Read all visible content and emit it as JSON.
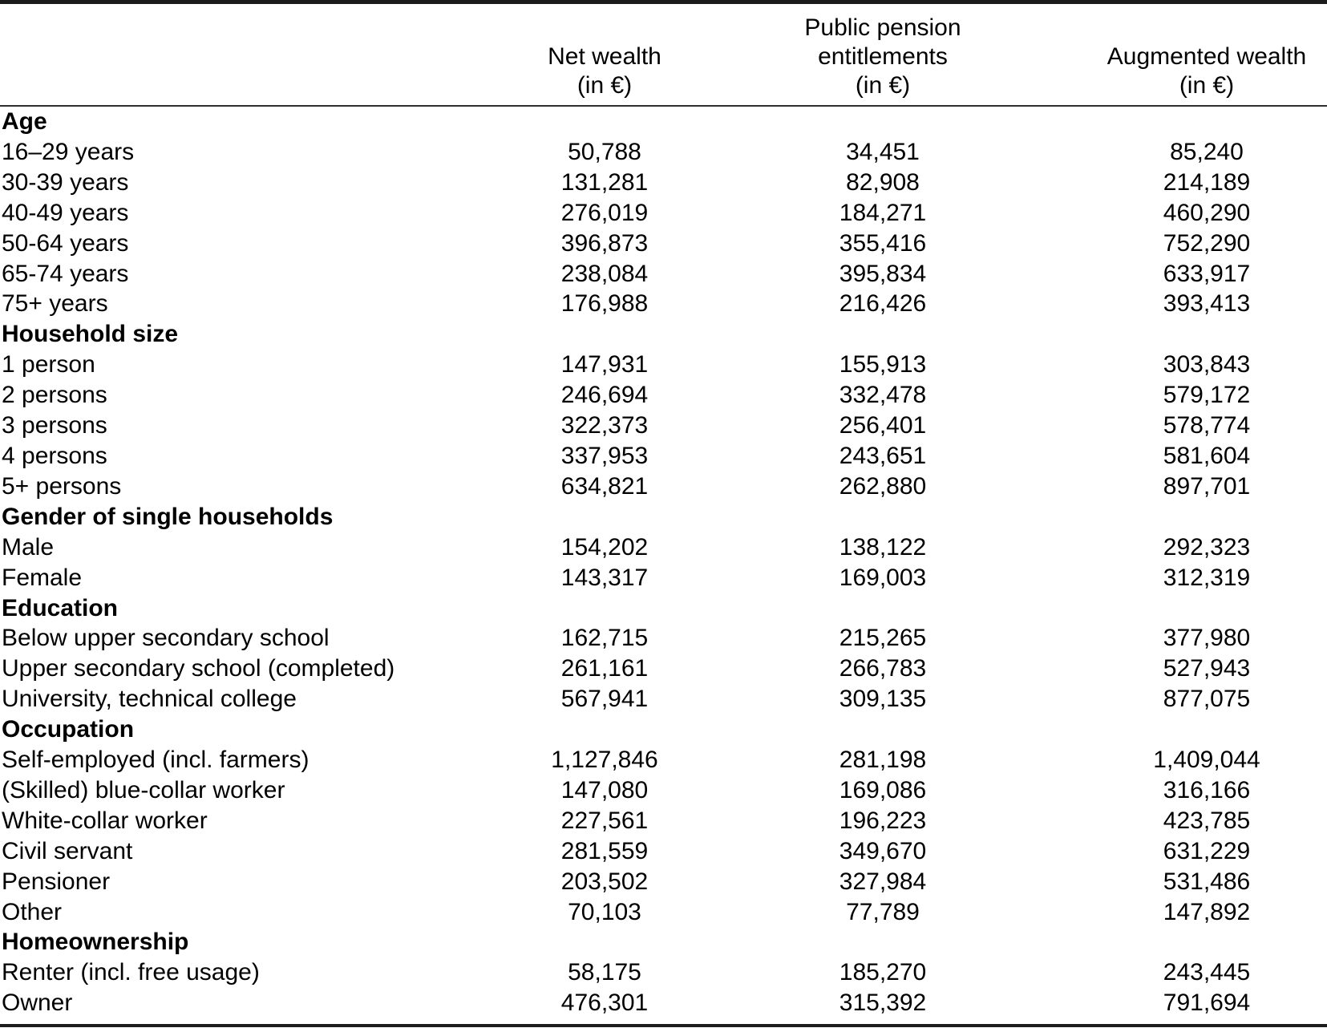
{
  "chart_data": {
    "type": "table",
    "columns": {
      "row_label": "",
      "net_wealth": [
        "Net wealth",
        "(in €)"
      ],
      "public_pension": [
        "Public pension",
        "entitlements",
        "(in €)"
      ],
      "augmented_wealth": [
        "Augmented wealth",
        "(in €)"
      ]
    },
    "sections": [
      {
        "header": "Age",
        "rows": [
          [
            "16–29 years",
            "50,788",
            "34,451",
            "85,240"
          ],
          [
            "30-39 years",
            "131,281",
            "82,908",
            "214,189"
          ],
          [
            "40-49 years",
            "276,019",
            "184,271",
            "460,290"
          ],
          [
            "50-64 years",
            "396,873",
            "355,416",
            "752,290"
          ],
          [
            "65-74 years",
            "238,084",
            "395,834",
            "633,917"
          ],
          [
            "75+ years",
            "176,988",
            "216,426",
            "393,413"
          ]
        ]
      },
      {
        "header": "Household size",
        "rows": [
          [
            "1 person",
            "147,931",
            "155,913",
            "303,843"
          ],
          [
            "2 persons",
            "246,694",
            "332,478",
            "579,172"
          ],
          [
            "3 persons",
            "322,373",
            "256,401",
            "578,774"
          ],
          [
            "4 persons",
            "337,953",
            "243,651",
            "581,604"
          ],
          [
            "5+ persons",
            "634,821",
            "262,880",
            "897,701"
          ]
        ]
      },
      {
        "header": "Gender of single households",
        "rows": [
          [
            "Male",
            "154,202",
            "138,122",
            "292,323"
          ],
          [
            "Female",
            "143,317",
            "169,003",
            "312,319"
          ]
        ]
      },
      {
        "header": "Education",
        "rows": [
          [
            "Below upper secondary school",
            "162,715",
            "215,265",
            "377,980"
          ],
          [
            "Upper secondary school (completed)",
            "261,161",
            "266,783",
            "527,943"
          ],
          [
            "University, technical college",
            "567,941",
            "309,135",
            "877,075"
          ]
        ]
      },
      {
        "header": "Occupation",
        "rows": [
          [
            "Self-employed (incl. farmers)",
            "1,127,846",
            "281,198",
            "1,409,044"
          ],
          [
            "(Skilled) blue-collar worker",
            "147,080",
            "169,086",
            "316,166"
          ],
          [
            "White-collar worker",
            "227,561",
            "196,223",
            "423,785"
          ],
          [
            "Civil servant",
            "281,559",
            "349,670",
            "631,229"
          ],
          [
            "Pensioner",
            "203,502",
            "327,984",
            "531,486"
          ],
          [
            "Other",
            "70,103",
            "77,789",
            "147,892"
          ]
        ]
      },
      {
        "header": "Homeownership",
        "rows": [
          [
            "Renter (incl. free usage)",
            "58,175",
            "185,270",
            "243,445"
          ],
          [
            "Owner",
            "476,301",
            "315,392",
            "791,694"
          ]
        ]
      }
    ]
  }
}
